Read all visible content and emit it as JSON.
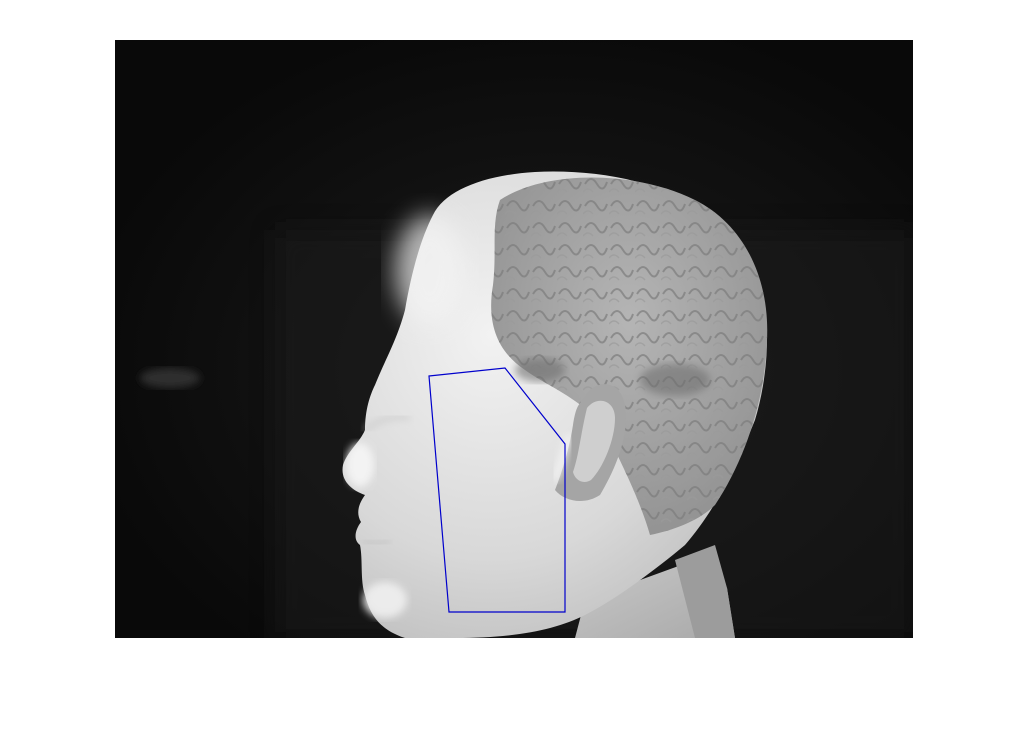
{
  "figure": {
    "background_color": "#ffffff"
  },
  "image": {
    "subject": "thermal-grayscale-profile-head",
    "colormap": "gray",
    "background_color": "#0b0b0b"
  },
  "roi_polygon": {
    "shape": "polygon",
    "vertex_count": 6,
    "stroke_color": "#0000cc"
  }
}
